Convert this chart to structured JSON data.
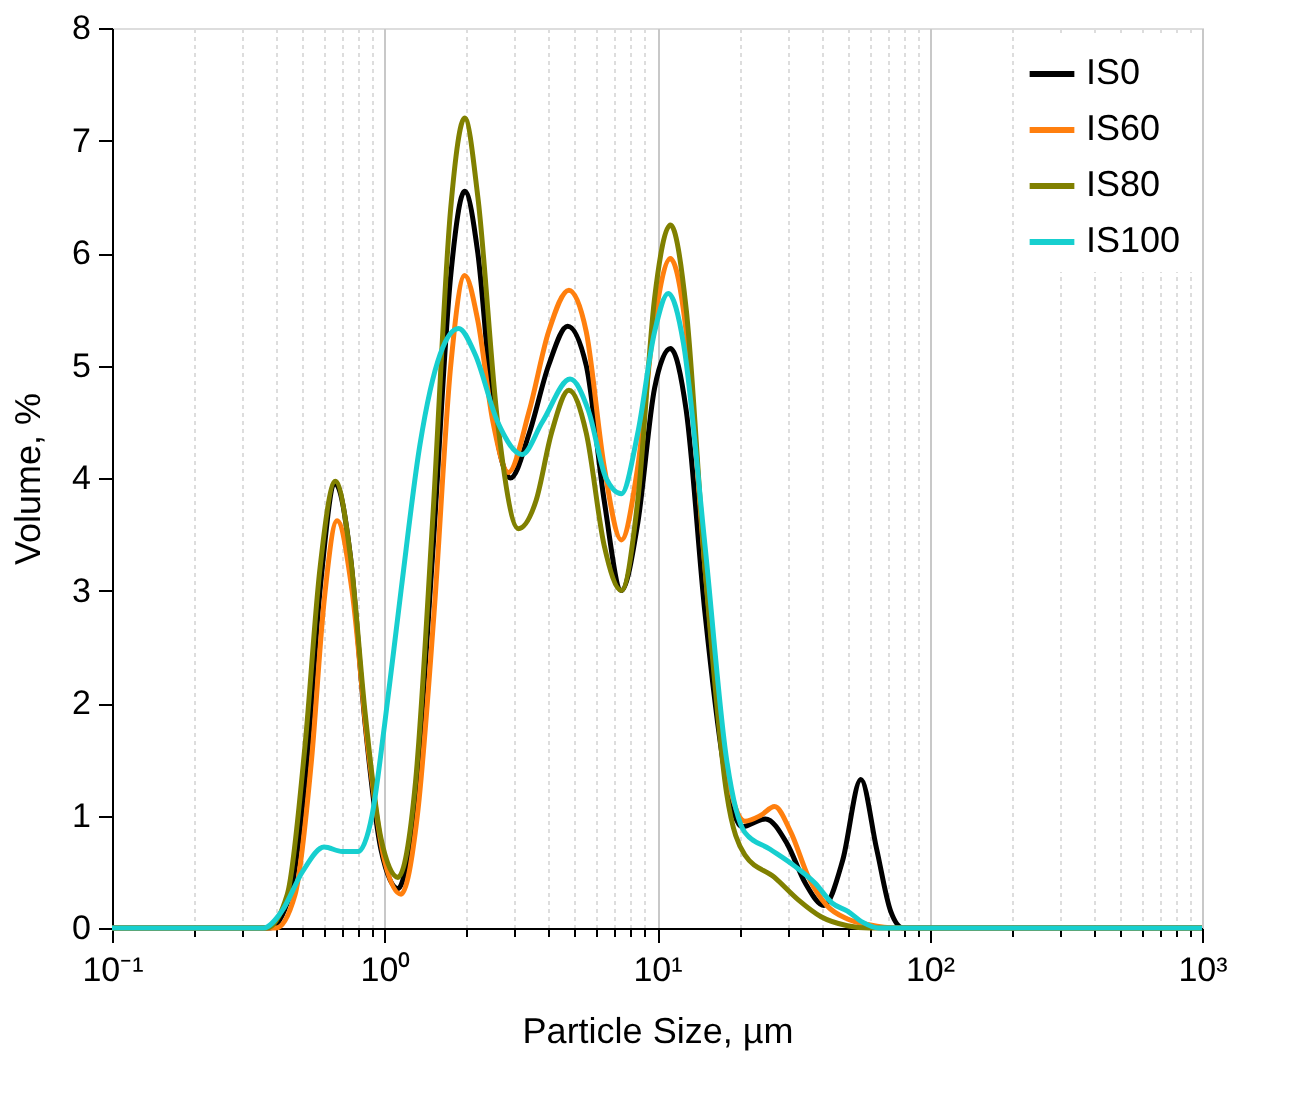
{
  "chart_data": {
    "type": "line",
    "xlabel": "Particle Size, µm",
    "ylabel": "Volume, %",
    "log": "x",
    "grid": "x",
    "legend": "top right",
    "line_style": "solid",
    "marker": "none",
    "xlim": [
      0.1,
      1000
    ],
    "ylim": [
      0,
      8
    ],
    "yticks": [
      0,
      1,
      2,
      3,
      4,
      5,
      6,
      7,
      8
    ],
    "xticks": [
      {
        "value": 0.1,
        "label": "10⁻¹"
      },
      {
        "value": 0.2,
        "label": null
      },
      {
        "value": 0.3,
        "label": null
      },
      {
        "value": 0.4,
        "label": null
      },
      {
        "value": 0.5,
        "label": null
      },
      {
        "value": 0.6,
        "label": null
      },
      {
        "value": 0.7,
        "label": null
      },
      {
        "value": 0.8,
        "label": null
      },
      {
        "value": 0.9,
        "label": null
      },
      {
        "value": 1,
        "label": "10⁰"
      },
      {
        "value": 2,
        "label": null
      },
      {
        "value": 3,
        "label": null
      },
      {
        "value": 4,
        "label": null
      },
      {
        "value": 5,
        "label": null
      },
      {
        "value": 6,
        "label": null
      },
      {
        "value": 7,
        "label": null
      },
      {
        "value": 8,
        "label": null
      },
      {
        "value": 9,
        "label": null
      },
      {
        "value": 10,
        "label": "10¹"
      },
      {
        "value": 20,
        "label": null
      },
      {
        "value": 30,
        "label": null
      },
      {
        "value": 40,
        "label": null
      },
      {
        "value": 50,
        "label": null
      },
      {
        "value": 60,
        "label": null
      },
      {
        "value": 70,
        "label": null
      },
      {
        "value": 80,
        "label": null
      },
      {
        "value": 90,
        "label": null
      },
      {
        "value": 100,
        "label": "10²"
      },
      {
        "value": 200,
        "label": null
      },
      {
        "value": 300,
        "label": null
      },
      {
        "value": 400,
        "label": null
      },
      {
        "value": 500,
        "label": null
      },
      {
        "value": 600,
        "label": null
      },
      {
        "value": 700,
        "label": null
      },
      {
        "value": 800,
        "label": null
      },
      {
        "value": 900,
        "label": null
      },
      {
        "value": 1000,
        "label": "10³"
      }
    ],
    "series": [
      {
        "name": "IS0",
        "color": "#000000",
        "x": [
          0.1,
          0.38,
          0.45,
          0.52,
          0.58,
          0.66,
          0.75,
          0.85,
          0.97,
          1.12,
          1.3,
          1.5,
          1.75,
          1.97,
          2.2,
          2.5,
          2.9,
          3.4,
          4.0,
          4.7,
          5.5,
          6.4,
          7.4,
          8.5,
          9.8,
          11.2,
          12.8,
          15,
          18,
          20.5,
          25,
          30,
          35,
          41,
          48,
          56,
          64,
          72,
          80,
          1000
        ],
        "values": [
          0,
          0,
          0.3,
          1.5,
          3.0,
          3.95,
          3.3,
          1.8,
          0.7,
          0.35,
          1.2,
          3.3,
          5.8,
          6.55,
          6.0,
          4.6,
          4.0,
          4.4,
          5.0,
          5.35,
          5.0,
          3.8,
          3.0,
          3.6,
          4.8,
          5.15,
          4.6,
          2.8,
          1.3,
          0.9,
          0.97,
          0.75,
          0.4,
          0.2,
          0.6,
          1.32,
          0.7,
          0.15,
          0,
          0
        ]
      },
      {
        "name": "IS60",
        "color": "#ff7f0e",
        "x": [
          0.1,
          0.4,
          0.47,
          0.54,
          0.6,
          0.67,
          0.76,
          0.87,
          1.0,
          1.15,
          1.32,
          1.52,
          1.75,
          1.97,
          2.2,
          2.5,
          2.85,
          3.4,
          4.0,
          4.75,
          5.5,
          6.4,
          7.4,
          8.5,
          9.8,
          11.2,
          12.8,
          15,
          18,
          21,
          24,
          27,
          31,
          36,
          42,
          50,
          60,
          75,
          1000
        ],
        "values": [
          0,
          0,
          0.3,
          1.5,
          2.9,
          3.62,
          3.0,
          1.6,
          0.6,
          0.3,
          1.0,
          2.8,
          5.0,
          5.8,
          5.4,
          4.5,
          4.05,
          4.6,
          5.3,
          5.67,
          5.3,
          4.1,
          3.45,
          4.1,
          5.4,
          5.95,
          5.3,
          3.2,
          1.4,
          0.95,
          1.0,
          1.08,
          0.85,
          0.45,
          0.2,
          0.08,
          0.03,
          0,
          0
        ]
      },
      {
        "name": "IS80",
        "color": "#808000",
        "x": [
          0.1,
          0.37,
          0.44,
          0.51,
          0.58,
          0.66,
          0.75,
          0.85,
          0.97,
          1.12,
          1.3,
          1.5,
          1.75,
          1.97,
          2.2,
          2.6,
          3.1,
          3.6,
          4.1,
          4.75,
          5.5,
          6.4,
          7.4,
          8.5,
          9.8,
          11.2,
          12.8,
          15,
          18,
          21,
          27,
          33,
          40,
          50,
          60,
          1000
        ],
        "values": [
          0,
          0,
          0.3,
          1.6,
          3.2,
          3.97,
          3.3,
          1.9,
          0.8,
          0.45,
          1.3,
          3.6,
          6.4,
          7.2,
          6.5,
          4.5,
          3.55,
          3.8,
          4.4,
          4.78,
          4.4,
          3.4,
          3.0,
          3.8,
          5.6,
          6.25,
          5.5,
          3.2,
          1.2,
          0.65,
          0.45,
          0.25,
          0.1,
          0.02,
          0,
          0
        ]
      },
      {
        "name": "IS100",
        "color": "#17cfcf",
        "x": [
          0.1,
          0.36,
          0.42,
          0.5,
          0.6,
          0.7,
          0.8,
          0.9,
          1.0,
          1.15,
          1.35,
          1.6,
          1.87,
          2.15,
          2.6,
          3.2,
          3.8,
          4.8,
          5.6,
          6.5,
          7.4,
          8.5,
          9.8,
          11.0,
          12.5,
          15,
          18,
          21,
          26,
          32,
          38,
          44,
          50,
          57,
          65,
          1000
        ],
        "values": [
          0,
          0,
          0.15,
          0.5,
          0.72,
          0.68,
          0.68,
          1.0,
          1.8,
          3.0,
          4.3,
          5.1,
          5.33,
          5.1,
          4.5,
          4.21,
          4.5,
          4.88,
          4.6,
          4.0,
          3.86,
          4.4,
          5.3,
          5.64,
          5.2,
          3.4,
          1.5,
          0.85,
          0.7,
          0.55,
          0.4,
          0.22,
          0.15,
          0.05,
          0,
          0
        ]
      }
    ]
  }
}
